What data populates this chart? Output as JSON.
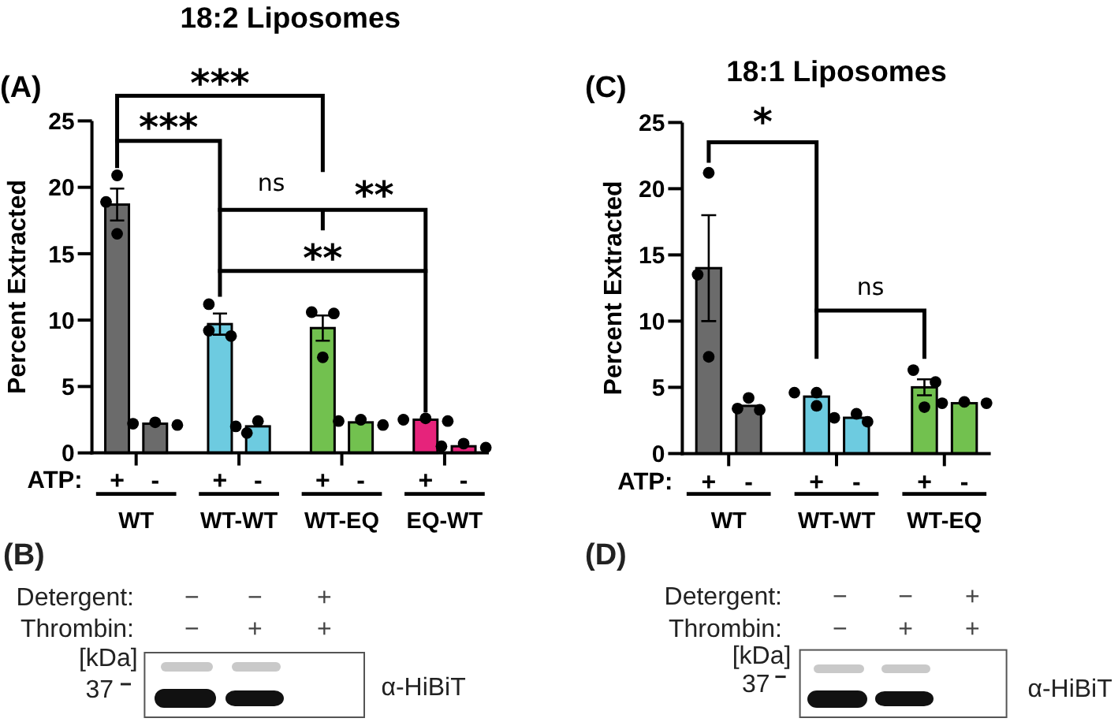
{
  "chart_data": [
    {
      "type": "bar",
      "title": "18:2 Liposomes",
      "ylabel": "Percent Extracted",
      "legend": "bottom",
      "legend_title": "ATP:",
      "categories": [
        "WT",
        "WT-WT",
        "WT-EQ",
        "EQ-WT"
      ],
      "ylim": [
        0,
        25
      ],
      "yticks": [
        0,
        5,
        10,
        15,
        20,
        25
      ],
      "marker": "circle",
      "series": [
        {
          "name": "+",
          "colors": [
            "#6b6b6b",
            "#6dcbe0",
            "#72c14f",
            "#e6237b"
          ],
          "values": [
            18.7,
            9.7,
            9.4,
            2.5
          ],
          "errors": [
            1.2,
            0.8,
            0.95,
            null
          ]
        },
        {
          "name": "-",
          "colors": [
            "#6b6b6b",
            "#6dcbe0",
            "#72c14f",
            "#e6237b"
          ],
          "values": [
            2.2,
            2.0,
            2.3,
            0.5
          ]
        },
        {
          "type": "scatter",
          "color": "#000000",
          "x": [
            "WT",
            "WT",
            "WT",
            "WT-WT",
            "WT-WT",
            "WT-WT",
            "WT-EQ",
            "WT-EQ",
            "WT-EQ",
            "EQ-WT",
            "EQ-WT",
            "EQ-WT"
          ],
          "values": [
            20.9,
            18.9,
            16.5,
            11.2,
            9.2,
            8.8,
            10.6,
            10.5,
            7.2,
            2.6,
            2.5,
            2.4
          ]
        },
        {
          "type": "scatter",
          "color": "#000000",
          "x": [
            "WT",
            "WT",
            "WT",
            "WT-WT",
            "WT-WT",
            "WT-WT",
            "WT-EQ",
            "WT-EQ",
            "WT-EQ",
            "EQ-WT",
            "EQ-WT",
            "EQ-WT"
          ],
          "values": [
            2.3,
            2.2,
            2.1,
            2.4,
            2.0,
            1.5,
            2.5,
            2.4,
            2.1,
            0.7,
            0.5,
            0.4
          ]
        }
      ],
      "annotations": [
        "(A)",
        "***",
        "***",
        "ns",
        "**",
        "**"
      ]
    },
    {
      "type": "other",
      "annotations": [
        "(B)",
        "Detergent:",
        "Thrombin:",
        "−",
        "−",
        "+",
        "−",
        "+",
        "+",
        "[kDa]",
        "37",
        "α-HiBiT"
      ]
    },
    {
      "type": "bar",
      "title": "18:1 Liposomes",
      "ylabel": "Percent Extracted",
      "legend": "bottom",
      "legend_title": "ATP:",
      "categories": [
        "WT",
        "WT-WT",
        "WT-EQ"
      ],
      "ylim": [
        0,
        25
      ],
      "yticks": [
        0,
        5,
        10,
        15,
        20,
        25
      ],
      "marker": "circle",
      "series": [
        {
          "name": "+",
          "colors": [
            "#6b6b6b",
            "#6dcbe0",
            "#72c14f"
          ],
          "values": [
            14.0,
            4.3,
            5.0
          ],
          "errors": [
            4.0,
            null,
            0.6
          ]
        },
        {
          "name": "-",
          "colors": [
            "#6b6b6b",
            "#6dcbe0",
            "#72c14f"
          ],
          "values": [
            3.6,
            2.7,
            3.8
          ]
        },
        {
          "type": "scatter",
          "color": "#000000",
          "x": [
            "WT",
            "WT",
            "WT",
            "WT-WT",
            "WT-WT",
            "WT-WT",
            "WT-EQ",
            "WT-EQ",
            "WT-EQ"
          ],
          "values": [
            21.2,
            13.5,
            7.3,
            4.6,
            4.6,
            3.6,
            6.3,
            5.4,
            3.5
          ]
        },
        {
          "type": "scatter",
          "color": "#000000",
          "x": [
            "WT",
            "WT",
            "WT",
            "WT-WT",
            "WT-WT",
            "WT-WT",
            "WT-EQ",
            "WT-EQ",
            "WT-EQ"
          ],
          "values": [
            4.2,
            3.4,
            3.3,
            3.0,
            2.7,
            2.4,
            3.9,
            3.8,
            3.8
          ]
        }
      ],
      "annotations": [
        "(C)",
        "*",
        "ns"
      ]
    },
    {
      "type": "other",
      "annotations": [
        "(D)",
        "Detergent:",
        "Thrombin:",
        "−",
        "−",
        "+",
        "−",
        "+",
        "+",
        "[kDa]",
        "37",
        "α-HiBiT"
      ]
    }
  ]
}
